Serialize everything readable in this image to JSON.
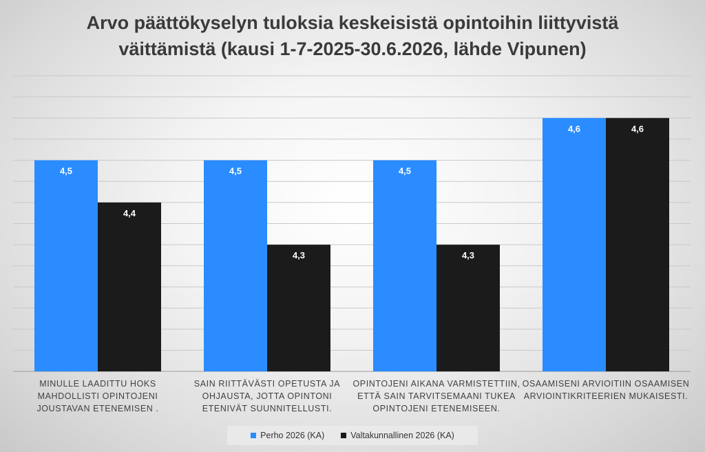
{
  "chart_data": {
    "type": "bar",
    "title": "Arvo päättökyselyn tuloksia keskeisistä opintoihin liittyvistä\nväittämistä (kausi 1-7-2025-30.6.2026, lähde Vipunen)",
    "categories": [
      "MINULLE LAADITTU HOKS MAHDOLLISTI OPINTOJENI JOUSTAVAN ETENEMISEN .",
      "SAIN RIITTÄVÄSTI OPETUSTA JA OHJAUSTA, JOTTA OPINTONI ETENIVÄT SUUNNITELLUSTI.",
      "OPINTOJENI AIKANA VARMISTETTIIN, ETTÄ SAIN TARVITSEMAANI TUKEA OPINTOJENI ETENEMISEEN.",
      "OSAAMISENI ARVIOITIIN OSAAMISEN ARVIOINTIKRITEERIEN MUKAISESTI."
    ],
    "series": [
      {
        "name": "Perho 2026 (KA)",
        "color": "#2a8cff",
        "values": [
          4.5,
          4.5,
          4.5,
          4.6
        ],
        "labels": [
          "4,5",
          "4,5",
          "4,5",
          "4,6"
        ]
      },
      {
        "name": "Valtakunnallinen 2026 (KA)",
        "color": "#1b1b1b",
        "values": [
          4.4,
          4.3,
          4.3,
          4.6
        ],
        "labels": [
          "4,4",
          "4,3",
          "4,3",
          "4,6"
        ]
      }
    ],
    "ylim": [
      4.0,
      4.7
    ],
    "y_gridline_step": 0.05,
    "y_axis_labels_shown": false,
    "grid": true,
    "legend_position": "bottom",
    "xlabel": "",
    "ylabel": ""
  }
}
